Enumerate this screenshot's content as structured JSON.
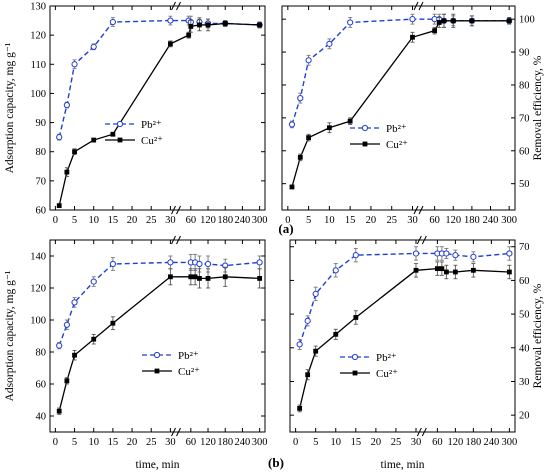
{
  "figure": {
    "panel_labels": [
      "(a)",
      "(b)"
    ],
    "pb_color": "#1f3fd6",
    "cu_color": "#000000"
  },
  "chart_data": [
    {
      "id": "a-left",
      "type": "line",
      "xlabel": "",
      "ylabel": "Adsorption capacity, mg g⁻¹",
      "ylim": [
        60,
        130
      ],
      "yticks": [
        60,
        70,
        80,
        90,
        100,
        110,
        120,
        130
      ],
      "xticks": [
        "0",
        "5",
        "10",
        "15",
        "20",
        "25",
        "30",
        "60",
        "120",
        "180",
        "240",
        "300"
      ],
      "legend": [
        "Pb²⁺",
        "Cu²⁺"
      ],
      "series": [
        {
          "name": "Pb²⁺",
          "style": "dashed-open-circle",
          "x": [
            1,
            3,
            5,
            10,
            15,
            30,
            45,
            60,
            90,
            120,
            180,
            300
          ],
          "y": [
            85,
            96,
            110,
            116,
            124.5,
            125,
            125,
            124.5,
            124.5,
            124,
            124,
            123.5
          ],
          "err": [
            1,
            1,
            1.5,
            1,
            1.5,
            1.5,
            1.5,
            2,
            1.5,
            1.5,
            1,
            1
          ]
        },
        {
          "name": "Cu²⁺",
          "style": "solid-filled-square",
          "x": [
            1,
            3,
            5,
            10,
            15,
            30,
            45,
            60,
            90,
            120,
            180,
            300
          ],
          "y": [
            61.5,
            73,
            80,
            84,
            86,
            117,
            120,
            123,
            123.5,
            123.5,
            124,
            123.5
          ],
          "err": [
            0.5,
            1.5,
            1,
            0.5,
            0.5,
            1,
            1,
            2,
            2,
            2,
            1,
            1
          ]
        }
      ]
    },
    {
      "id": "a-right",
      "type": "line",
      "xlabel": "",
      "ylabel": "Removal efficiency, %",
      "ylim": [
        42,
        104
      ],
      "yticks": [
        50,
        60,
        70,
        80,
        90,
        100
      ],
      "xticks": [
        "0",
        "5",
        "10",
        "15",
        "20",
        "25",
        "30",
        "60",
        "120",
        "180",
        "240",
        "300"
      ],
      "legend": [
        "Pb²⁺",
        "Cu²⁺"
      ],
      "series": [
        {
          "name": "Pb²⁺",
          "style": "dashed-open-circle",
          "x": [
            1,
            3,
            5,
            10,
            15,
            30,
            60,
            75,
            90,
            120,
            180,
            300
          ],
          "y": [
            68,
            76,
            87.5,
            92.5,
            99,
            100,
            100,
            100,
            99.5,
            99.5,
            99.5,
            99.5
          ],
          "err": [
            1,
            1.5,
            1.5,
            1.5,
            1.5,
            1.5,
            1.5,
            1.5,
            2,
            1.5,
            1.5,
            1
          ]
        },
        {
          "name": "Cu²⁺",
          "style": "solid-filled-square",
          "x": [
            1,
            3,
            5,
            10,
            15,
            30,
            60,
            75,
            90,
            120,
            180,
            300
          ],
          "y": [
            49,
            58,
            64,
            67,
            69,
            94.5,
            96.5,
            99,
            99.5,
            99.5,
            99.5,
            99.5
          ],
          "err": [
            0.5,
            1,
            1,
            1.5,
            1,
            1.5,
            1,
            1.5,
            2,
            2,
            1.5,
            1
          ]
        }
      ]
    },
    {
      "id": "b-left",
      "type": "line",
      "xlabel": "time, min",
      "ylabel": "Adsorption capacity, mg g⁻¹",
      "ylim": [
        30,
        150
      ],
      "yticks": [
        40,
        60,
        80,
        100,
        120,
        140
      ],
      "xticks": [
        "0",
        "5",
        "10",
        "15",
        "20",
        "25",
        "30",
        "60",
        "120",
        "180",
        "240",
        "300"
      ],
      "legend": [
        "Pb²⁺",
        "Cu²⁺"
      ],
      "series": [
        {
          "name": "Pb²⁺",
          "style": "dashed-open-circle",
          "x": [
            1,
            3,
            5,
            10,
            15,
            30,
            60,
            75,
            90,
            120,
            180,
            300
          ],
          "y": [
            84,
            97,
            111,
            124,
            135,
            136,
            136,
            136,
            135,
            135,
            134,
            136
          ],
          "err": [
            2,
            3,
            3,
            3,
            4,
            4,
            5,
            5,
            5,
            5,
            4,
            4
          ]
        },
        {
          "name": "Cu²⁺",
          "style": "solid-filled-square",
          "x": [
            1,
            3,
            5,
            10,
            15,
            30,
            60,
            75,
            90,
            120,
            180,
            300
          ],
          "y": [
            43,
            62,
            78,
            88,
            98,
            127,
            127,
            127,
            126,
            126,
            127,
            126
          ],
          "err": [
            2,
            2,
            3,
            3,
            4,
            5,
            5,
            5,
            6,
            6,
            6,
            6
          ]
        }
      ]
    },
    {
      "id": "b-right",
      "type": "line",
      "xlabel": "time, min",
      "ylabel": "Removal efficiency, %",
      "ylim": [
        15,
        72
      ],
      "yticks": [
        20,
        30,
        40,
        50,
        60,
        70
      ],
      "xticks": [
        "0",
        "5",
        "10",
        "15",
        "20",
        "25",
        "30",
        "60",
        "120",
        "180",
        "240",
        "300"
      ],
      "legend": [
        "Pb²⁺",
        "Cu²⁺"
      ],
      "series": [
        {
          "name": "Pb²⁺",
          "style": "dashed-open-circle",
          "x": [
            1,
            3,
            5,
            10,
            15,
            30,
            60,
            75,
            90,
            120,
            180,
            300
          ],
          "y": [
            41,
            48,
            56,
            63,
            67.5,
            68,
            68,
            68,
            68,
            67.5,
            67,
            68
          ],
          "err": [
            1.5,
            1.5,
            2,
            2,
            2,
            2,
            2,
            2,
            1.5,
            1.5,
            1.5,
            2
          ]
        },
        {
          "name": "Cu²⁺",
          "style": "solid-filled-square",
          "x": [
            1,
            3,
            5,
            10,
            15,
            30,
            60,
            75,
            90,
            120,
            180,
            300
          ],
          "y": [
            22,
            32,
            39,
            44,
            49,
            63,
            63.5,
            63.5,
            62.5,
            62.5,
            63,
            62.5
          ],
          "err": [
            1,
            1.5,
            1.5,
            1.5,
            2,
            2,
            2,
            2,
            2,
            2,
            2,
            2
          ]
        }
      ]
    }
  ]
}
